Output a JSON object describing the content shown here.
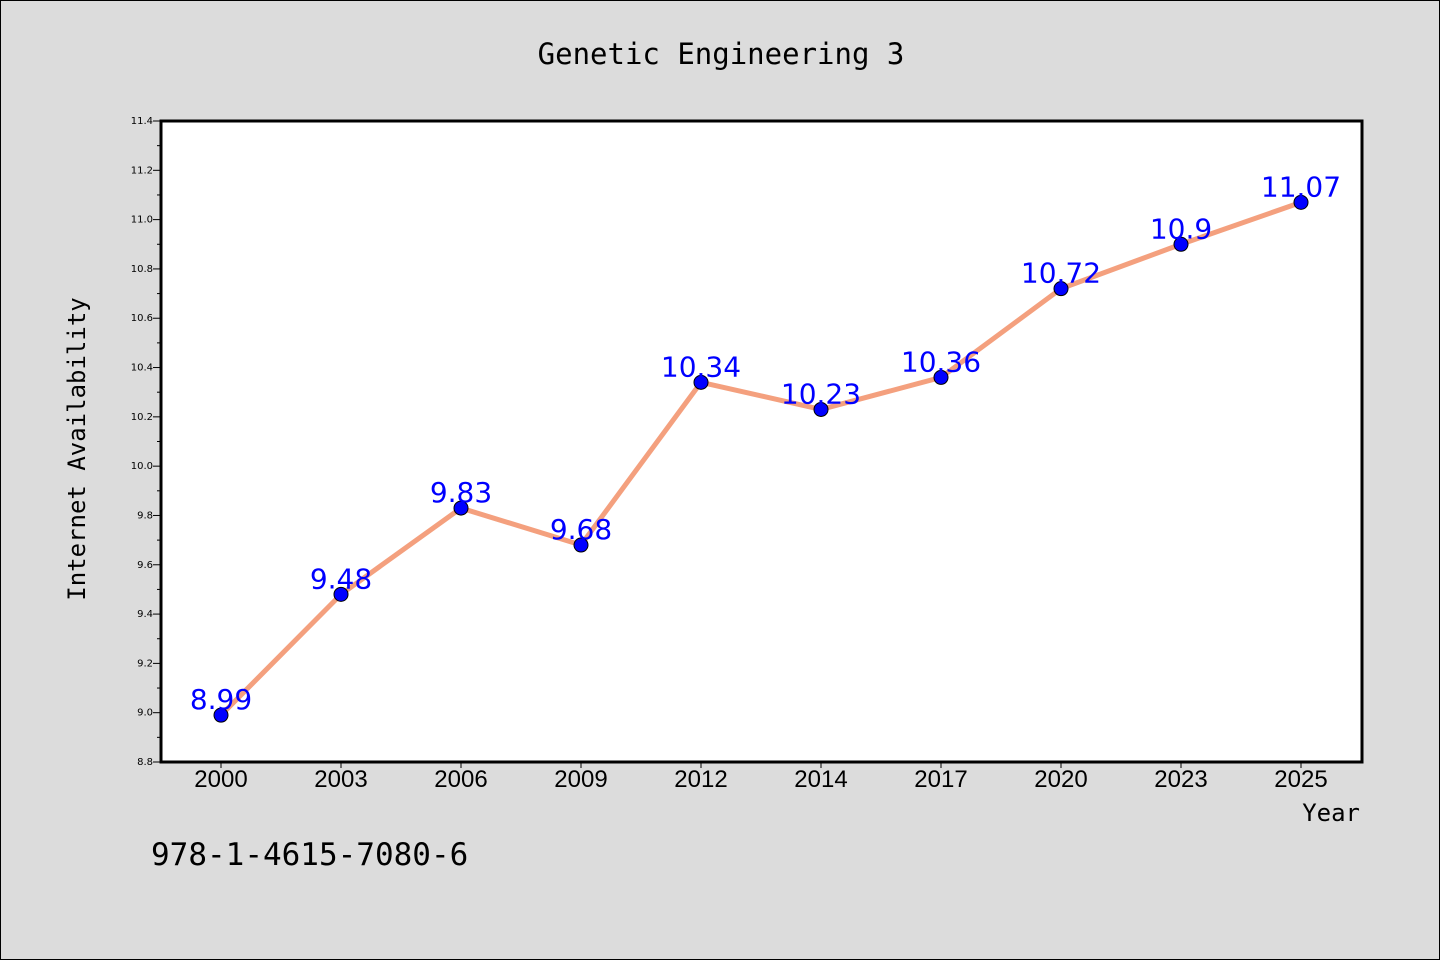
{
  "chart_data": {
    "type": "line",
    "title": "Genetic Engineering 3",
    "xlabel": "Year",
    "ylabel": "Internet Availability",
    "categories": [
      "2000",
      "2003",
      "2006",
      "2009",
      "2012",
      "2014",
      "2017",
      "2020",
      "2023",
      "2025"
    ],
    "series": [
      {
        "values": [
          8.99,
          9.48,
          9.83,
          9.68,
          10.34,
          10.23,
          10.36,
          10.72,
          10.9,
          11.07
        ],
        "labels": [
          "8.99",
          "9.48",
          "9.83",
          "9.68",
          "10.34",
          "10.23",
          "10.36",
          "10.72",
          "10.9",
          "11.07"
        ]
      }
    ],
    "ylim": [
      8.8,
      11.4
    ],
    "yticks": [
      "8.8",
      "9.0",
      "9.2",
      "9.4",
      "9.6",
      "9.8",
      "10.0",
      "10.2",
      "10.4",
      "10.6",
      "10.8",
      "11.0",
      "11.2",
      "11.4"
    ],
    "grid": false,
    "colors": {
      "line": "#f4a07e",
      "marker": "#0000ff",
      "label": "#0000ff",
      "background": "#dcdcdc",
      "plot_background": "#ffffff"
    }
  },
  "annotation": "978-1-4615-7080-6"
}
